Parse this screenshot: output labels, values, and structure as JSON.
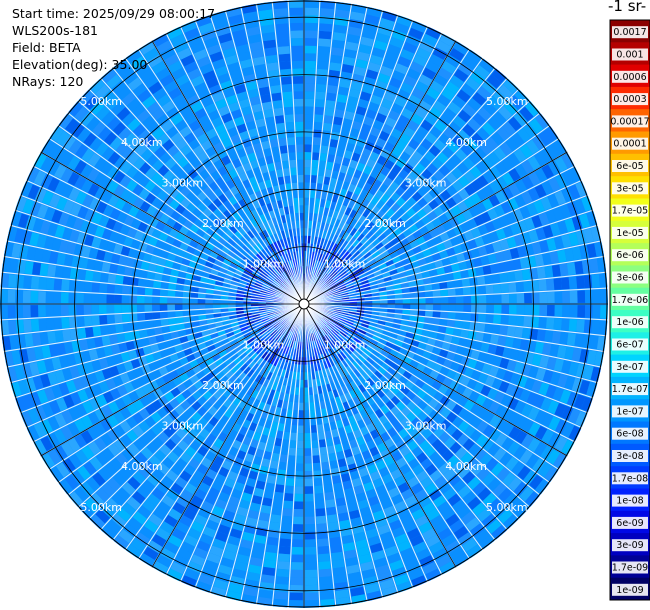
{
  "header": {
    "start_time": "Start time: 2025/09/29 08:00:17",
    "instrument": "WLS200s-181",
    "field": "Field: BETA",
    "elevation": "Elevation(deg): 35.00",
    "nrays": "NRays: 120"
  },
  "colorbar": {
    "title": "-1 sr-",
    "labels": [
      "0.0017",
      "0.001",
      "0.0006",
      "0.0003",
      "0.00017",
      "0.0001",
      "6e-05",
      "3e-05",
      "1.7e-05",
      "1e-05",
      "6e-06",
      "3e-06",
      "1.7e-06",
      "1e-06",
      "6e-07",
      "3e-07",
      "1.7e-07",
      "1e-07",
      "6e-08",
      "3e-08",
      "1.7e-08",
      "1e-08",
      "6e-09",
      "3e-09",
      "1.7e-09",
      "1e-09"
    ],
    "colors": [
      "#8b0000",
      "#b40000",
      "#e00000",
      "#ff2a00",
      "#ff6400",
      "#ff9a00",
      "#ffc000",
      "#ffe000",
      "#f2ff1a",
      "#d6ff3a",
      "#b4ff5a",
      "#8cff80",
      "#64ffa0",
      "#3cffc4",
      "#1ef0e6",
      "#00d4ff",
      "#00b4ff",
      "#0096ff",
      "#0078ff",
      "#005aff",
      "#003cff",
      "#0020ff",
      "#0008e6",
      "#0000c0",
      "#000096",
      "#000064"
    ]
  },
  "chart_data": {
    "type": "heatmap",
    "plot_kind": "PPI polar scan",
    "field": "BETA",
    "elevation_deg": 35.0,
    "n_rays": 120,
    "max_range_km": 5.3,
    "range_rings_km": [
      1.0,
      2.0,
      3.0,
      4.0,
      5.0
    ],
    "ring_labels": {
      "r1": "1.00km",
      "r2": "2.00km",
      "r3": "3.00km",
      "r4": "4.00km",
      "r5": "5.00km"
    },
    "color_scale": "log",
    "value_range": [
      1e-09,
      0.0017
    ],
    "typical_values": {
      "inner_0_1km": "3e-08 to 1e-07",
      "outer_1_5km": "1e-07 to 3e-07"
    }
  }
}
